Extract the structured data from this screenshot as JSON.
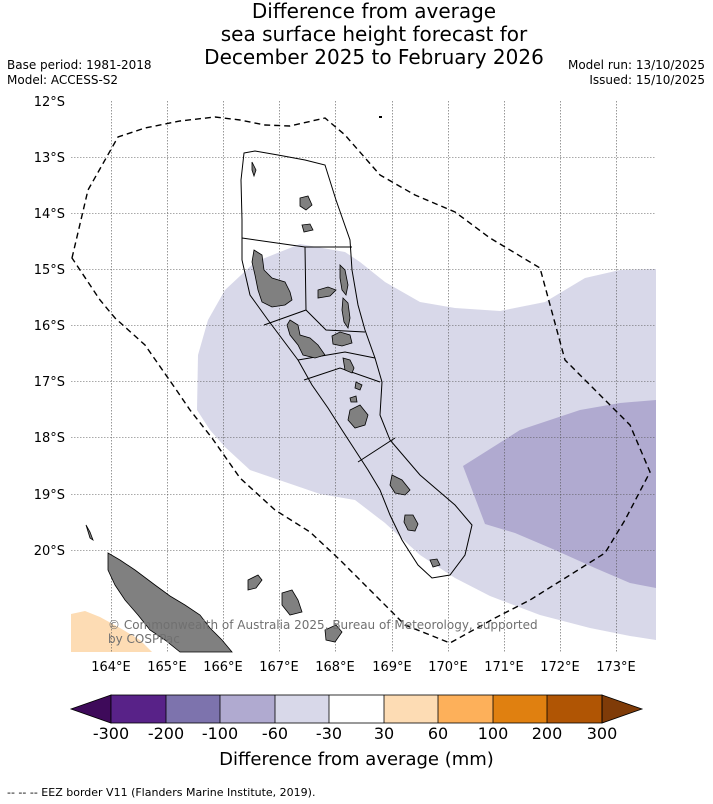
{
  "header": {
    "title_line1": "Difference from average",
    "title_line2": "sea surface height forecast for",
    "title_line3": "December 2025 to February 2026",
    "base_period": "Base period: 1981-2018",
    "model": "Model: ACCESS-S2",
    "model_run": "Model run: 13/10/2025",
    "issued": "Issued: 15/10/2025"
  },
  "map": {
    "lat_labels": [
      "12°S",
      "13°S",
      "14°S",
      "15°S",
      "16°S",
      "17°S",
      "18°S",
      "19°S",
      "20°S"
    ],
    "lon_labels": [
      "164°E",
      "165°E",
      "166°E",
      "167°E",
      "168°E",
      "169°E",
      "170°E",
      "171°E",
      "172°E",
      "173°E"
    ],
    "copyright_line1": "© Commonwealth of Australia 2025, Bureau of Meteorology, supported",
    "copyright_line2": "by COSPPac",
    "colors": {
      "ocean_bg": "#ffffff",
      "shade_light": "#d8d8e9",
      "shade_medium": "#b0aad0",
      "positive_light": "#fddcb4",
      "land": "#808080",
      "grid": "#555555"
    }
  },
  "colorbar": {
    "title": "Difference from average (mm)",
    "tick_labels": [
      "-300",
      "-200",
      "-100",
      "-60",
      "-30",
      "30",
      "60",
      "100",
      "200",
      "300"
    ],
    "colors": [
      "#3e0a5a",
      "#582288",
      "#7d73ad",
      "#b0aad0",
      "#d8d8e9",
      "#ffffff",
      "#fddcb4",
      "#fdb05a",
      "#e08010",
      "#b05504",
      "#7f3b08"
    ]
  },
  "legend": {
    "text": "-- -- -- EEZ border V11 (Flanders Marine Institute, 2019)."
  }
}
